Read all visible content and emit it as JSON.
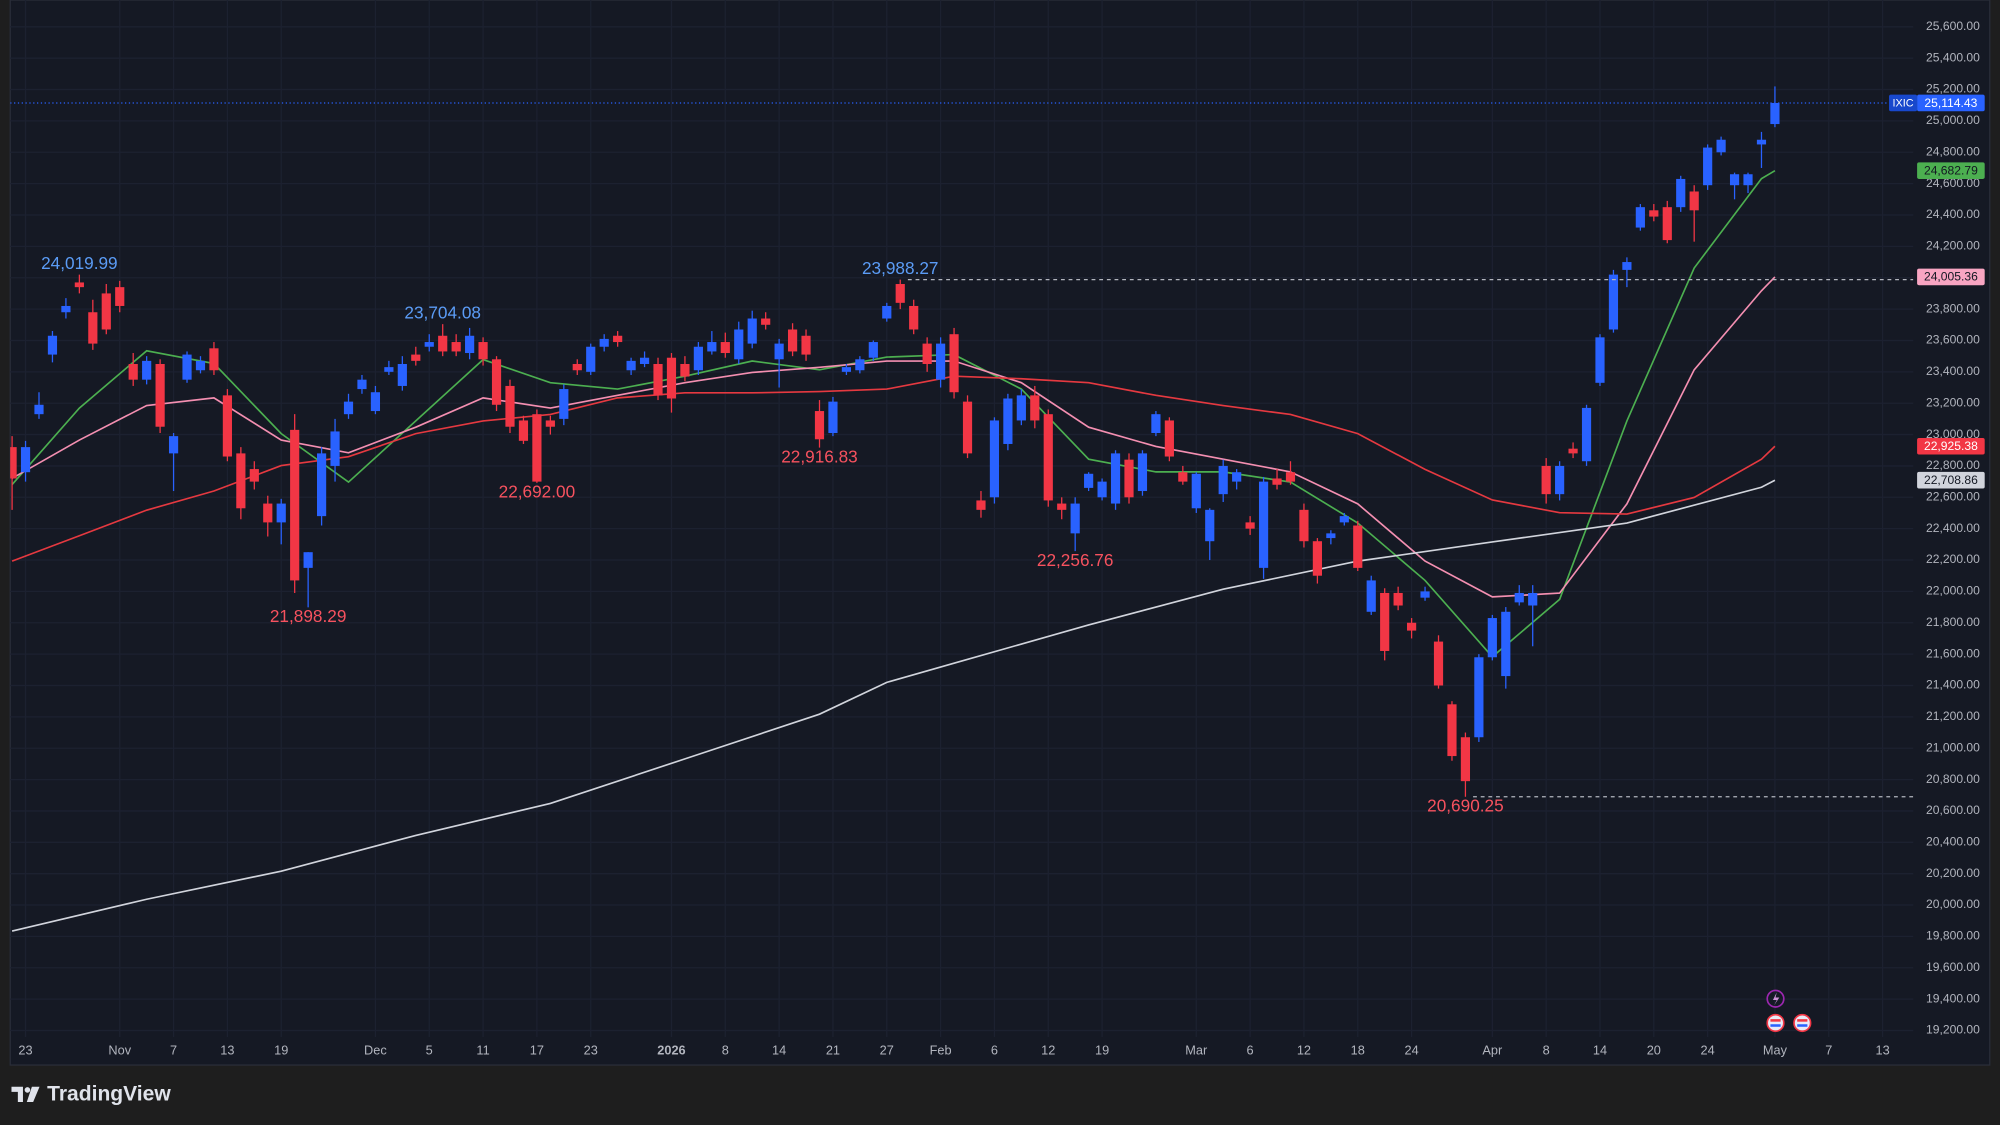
{
  "chart_data": {
    "type": "candlestick",
    "up_color": "#2962ff",
    "down_color": "#f23645",
    "grid": true,
    "xlim": [
      -0.14,
      141.28
    ],
    "ylim": [
      18996,
      25771
    ],
    "open": [
      22920,
      22760,
      23130,
      23510,
      23780,
      23970,
      23780,
      23900,
      23940,
      23450,
      23350,
      23450,
      22880,
      23350,
      23410,
      23550,
      23250,
      22880,
      22780,
      22560,
      22440,
      23030,
      22150,
      22480,
      22800,
      23130,
      23290,
      23150,
      23400,
      23310,
      23510,
      23560,
      23630,
      23590,
      23520,
      23590,
      23480,
      23310,
      23090,
      23130,
      23090,
      23100,
      23450,
      23400,
      23560,
      23630,
      23410,
      23450,
      23450,
      23490,
      23450,
      23410,
      23530,
      23590,
      23480,
      23580,
      23740,
      23480,
      23670,
      23630,
      23150,
      23010,
      23400,
      23410,
      23490,
      23740,
      23960,
      23820,
      23580,
      23350,
      23640,
      23210,
      22580,
      22600,
      22940,
      23090,
      23250,
      23130,
      22560,
      22370,
      22660,
      22600,
      22560,
      22840,
      22640,
      23010,
      23090,
      22760,
      22530,
      22320,
      22620,
      22700,
      22440,
      22150,
      22720,
      22760,
      22520,
      22320,
      22340,
      22440,
      22420,
      21870,
      21990,
      21990,
      21800,
      21960,
      21680,
      21280,
      21070,
      21070,
      21580,
      21460,
      21930,
      21910,
      22800,
      22620,
      22910,
      22830,
      23330,
      23670,
      24050,
      24320,
      24430,
      24450,
      24450,
      24550,
      24590,
      24800,
      24590,
      24590,
      24850,
      24980
    ],
    "high": [
      22990,
      22960,
      23270,
      23660,
      23870,
      24019.99,
      23860,
      23960,
      23980,
      23520,
      23500,
      23480,
      23010,
      23530,
      23500,
      23590,
      23290,
      22920,
      22830,
      22610,
      22590,
      23130,
      22250,
      22920,
      23100,
      23260,
      23380,
      23310,
      23470,
      23500,
      23560,
      23640,
      23704.08,
      23640,
      23680,
      23620,
      23500,
      23350,
      23120,
      23160,
      23120,
      23320,
      23480,
      23580,
      23640,
      23660,
      23490,
      23530,
      23490,
      23520,
      23500,
      23590,
      23660,
      23650,
      23720,
      23790,
      23780,
      23610,
      23710,
      23670,
      23220,
      23240,
      23450,
      23500,
      23600,
      23840,
      23988.27,
      23860,
      23620,
      23620,
      23680,
      23250,
      22640,
      23110,
      23260,
      23290,
      23310,
      23160,
      22600,
      22600,
      22760,
      22720,
      22900,
      22880,
      22900,
      23150,
      23110,
      22800,
      22760,
      22530,
      22840,
      22780,
      22480,
      22730,
      22780,
      22830,
      22560,
      22340,
      22390,
      22500,
      22450,
      22100,
      22020,
      22030,
      21830,
      22030,
      21720,
      21300,
      21100,
      21600,
      21850,
      21900,
      22040,
      22040,
      22850,
      22830,
      22950,
      23190,
      23640,
      24050,
      24130,
      24470,
      24470,
      24490,
      24650,
      24590,
      24850,
      24900,
      24670,
      24670,
      24930,
      25220
    ],
    "low": [
      22520,
      22700,
      23100,
      23460,
      23740,
      23900,
      23540,
      23640,
      23780,
      23310,
      23320,
      23010,
      22640,
      23330,
      23390,
      23380,
      22830,
      22460,
      22650,
      22350,
      22300,
      21990,
      21898.29,
      22420,
      22700,
      23100,
      23260,
      23130,
      23380,
      23280,
      23440,
      23530,
      23500,
      23500,
      23480,
      23440,
      23150,
      23010,
      22940,
      22692,
      23000,
      23060,
      23380,
      23380,
      23530,
      23560,
      23380,
      23430,
      23220,
      23140,
      23340,
      23380,
      23510,
      23490,
      23450,
      23550,
      23670,
      23300,
      23500,
      23470,
      22916.83,
      22990,
      23380,
      23390,
      23470,
      23720,
      23800,
      23640,
      23400,
      23300,
      23230,
      22850,
      22470,
      22560,
      22900,
      23060,
      23040,
      22540,
      22460,
      22256.76,
      22640,
      22580,
      22520,
      22560,
      22610,
      22990,
      22830,
      22680,
      22500,
      22200,
      22570,
      22650,
      22360,
      22080,
      22650,
      22680,
      22280,
      22050,
      22300,
      22420,
      22130,
      21850,
      21560,
      21880,
      21700,
      21940,
      21380,
      20920,
      20690.25,
      21040,
      21560,
      21380,
      21910,
      21650,
      22560,
      22580,
      22850,
      22800,
      23310,
      23650,
      23940,
      24300,
      24360,
      24220,
      24420,
      24230,
      24560,
      24780,
      24500,
      24540,
      24700,
      24960
    ],
    "close": [
      22720,
      22920,
      23190,
      23630,
      23820,
      23940,
      23580,
      23670,
      23820,
      23350,
      23470,
      23050,
      22990,
      23510,
      23470,
      23410,
      22860,
      22530,
      22700,
      22440,
      22560,
      22070,
      22250,
      22880,
      23020,
      23210,
      23350,
      23270,
      23430,
      23450,
      23470,
      23590,
      23530,
      23530,
      23630,
      23480,
      23190,
      23050,
      22960,
      22700,
      23050,
      23290,
      23410,
      23560,
      23610,
      23590,
      23470,
      23490,
      23250,
      23230,
      23370,
      23560,
      23590,
      23520,
      23670,
      23740,
      23700,
      23580,
      23530,
      23510,
      22970,
      23210,
      23430,
      23480,
      23590,
      23820,
      23840,
      23670,
      23450,
      23580,
      23270,
      22880,
      22520,
      23090,
      23230,
      23250,
      23090,
      22580,
      22520,
      22560,
      22750,
      22700,
      22880,
      22600,
      22880,
      23130,
      22860,
      22700,
      22750,
      22520,
      22800,
      22760,
      22400,
      22700,
      22680,
      22700,
      22320,
      22100,
      22370,
      22480,
      22150,
      22070,
      21620,
      21910,
      21750,
      22000,
      21400,
      20950,
      20790,
      21580,
      21830,
      21870,
      21990,
      21990,
      22620,
      22800,
      22880,
      23170,
      23620,
      24020,
      24100,
      24450,
      24390,
      24240,
      24630,
      24430,
      24830,
      24880,
      24660,
      24660,
      24880,
      25114.43
    ],
    "series": [
      {
        "color": "#4caf50",
        "x": [
          0,
          5,
          10,
          15,
          20,
          25,
          30,
          35,
          40,
          45,
          50,
          55,
          60,
          65,
          70,
          75,
          80,
          85,
          90,
          95,
          100,
          105,
          110,
          115,
          120,
          125,
          130,
          131
        ],
        "values": [
          22681,
          23169,
          23534,
          23453,
          23006,
          22697,
          23087,
          23478,
          23331,
          23290,
          23372,
          23469,
          23413,
          23494,
          23510,
          23290,
          22843,
          22762,
          22762,
          22697,
          22436,
          22070,
          21583,
          21949,
          23087,
          24062,
          24632,
          24682.79
        ]
      },
      {
        "color": "#f48fb1",
        "x": [
          0,
          5,
          10,
          15,
          20,
          25,
          30,
          35,
          40,
          45,
          50,
          55,
          60,
          65,
          70,
          75,
          80,
          85,
          90,
          95,
          100,
          105,
          110,
          115,
          120,
          125,
          130,
          131
        ],
        "values": [
          22721,
          22965,
          23185,
          23234,
          22965,
          22884,
          23047,
          23234,
          23169,
          23250,
          23331,
          23396,
          23429,
          23469,
          23469,
          23331,
          23047,
          22924,
          22843,
          22762,
          22558,
          22193,
          21965,
          21989,
          22558,
          23413,
          23917,
          24005.36
        ]
      },
      {
        "color": "#e53940",
        "x": [
          0,
          5,
          10,
          15,
          20,
          25,
          30,
          35,
          40,
          45,
          50,
          55,
          60,
          65,
          70,
          75,
          80,
          85,
          90,
          95,
          100,
          105,
          110,
          115,
          120,
          125,
          130,
          131
        ],
        "values": [
          22193,
          22355,
          22518,
          22640,
          22802,
          22859,
          23006,
          23087,
          23128,
          23234,
          23266,
          23266,
          23274,
          23290,
          23372,
          23356,
          23331,
          23250,
          23185,
          23128,
          23006,
          22778,
          22583,
          22502,
          22493,
          22599,
          22843,
          22925.38
        ]
      },
      {
        "color": "#d1d4dc",
        "x": [
          0,
          10,
          20,
          30,
          40,
          50,
          60,
          65,
          70,
          80,
          90,
          100,
          110,
          120,
          130,
          131
        ],
        "values": [
          19834,
          20037,
          20216,
          20444,
          20648,
          20932,
          21217,
          21420,
          21542,
          21786,
          22014,
          22193,
          22315,
          22436,
          22664,
          22708.86
        ]
      }
    ],
    "yticks": [
      {
        "value": 19200,
        "label": "19,200.00"
      },
      {
        "value": 19400,
        "label": "19,400.00"
      },
      {
        "value": 19600,
        "label": "19,600.00"
      },
      {
        "value": 19800,
        "label": "19,800.00"
      },
      {
        "value": 20000,
        "label": "20,000.00"
      },
      {
        "value": 20200,
        "label": "20,200.00"
      },
      {
        "value": 20400,
        "label": "20,400.00"
      },
      {
        "value": 20600,
        "label": "20,600.00"
      },
      {
        "value": 20800,
        "label": "20,800.00"
      },
      {
        "value": 21000,
        "label": "21,000.00"
      },
      {
        "value": 21200,
        "label": "21,200.00"
      },
      {
        "value": 21400,
        "label": "21,400.00"
      },
      {
        "value": 21600,
        "label": "21,600.00"
      },
      {
        "value": 21800,
        "label": "21,800.00"
      },
      {
        "value": 22000,
        "label": "22,000.00"
      },
      {
        "value": 22200,
        "label": "22,200.00"
      },
      {
        "value": 22400,
        "label": "22,400.00"
      },
      {
        "value": 22600,
        "label": "22,600.00"
      },
      {
        "value": 22800,
        "label": "22,800.00"
      },
      {
        "value": 23000,
        "label": "23,000.00"
      },
      {
        "value": 23200,
        "label": "23,200.00"
      },
      {
        "value": 23400,
        "label": "23,400.00"
      },
      {
        "value": 23600,
        "label": "23,600.00"
      },
      {
        "value": 23800,
        "label": "23,800.00"
      },
      {
        "value": 24000,
        "label": "24,000.00"
      },
      {
        "value": 24200,
        "label": "24,200.00"
      },
      {
        "value": 24400,
        "label": "24,400.00"
      },
      {
        "value": 24600,
        "label": "24,600.00"
      },
      {
        "value": 24800,
        "label": "24,800.00"
      },
      {
        "value": 25000,
        "label": "25,000.00"
      },
      {
        "value": 25200,
        "label": "25,200.00"
      },
      {
        "value": 25400,
        "label": "25,400.00"
      },
      {
        "value": 25600,
        "label": "25,600.00"
      }
    ],
    "xticks": [
      {
        "value": 1,
        "label": "23"
      },
      {
        "value": 8,
        "label": "Nov"
      },
      {
        "value": 12,
        "label": "7"
      },
      {
        "value": 16,
        "label": "13"
      },
      {
        "value": 20,
        "label": "19"
      },
      {
        "value": 27,
        "label": "Dec"
      },
      {
        "value": 31,
        "label": "5"
      },
      {
        "value": 35,
        "label": "11"
      },
      {
        "value": 39,
        "label": "17"
      },
      {
        "value": 43,
        "label": "23"
      },
      {
        "value": 49,
        "label": "2026",
        "bold": true
      },
      {
        "value": 53,
        "label": "8"
      },
      {
        "value": 57,
        "label": "14"
      },
      {
        "value": 61,
        "label": "21"
      },
      {
        "value": 65,
        "label": "27"
      },
      {
        "value": 69,
        "label": "Feb"
      },
      {
        "value": 73,
        "label": "6"
      },
      {
        "value": 77,
        "label": "12"
      },
      {
        "value": 81,
        "label": "19"
      },
      {
        "value": 88,
        "label": "Mar"
      },
      {
        "value": 92,
        "label": "6"
      },
      {
        "value": 96,
        "label": "12"
      },
      {
        "value": 100,
        "label": "18"
      },
      {
        "value": 104,
        "label": "24"
      },
      {
        "value": 110,
        "label": "Apr"
      },
      {
        "value": 114,
        "label": "8"
      },
      {
        "value": 118,
        "label": "14"
      },
      {
        "value": 122,
        "label": "20"
      },
      {
        "value": 126,
        "label": "24"
      },
      {
        "value": 131,
        "label": "May"
      },
      {
        "value": 135,
        "label": "7"
      },
      {
        "value": 139,
        "label": "13"
      }
    ],
    "annotations": [
      {
        "label": "24,019.99",
        "value": 24019.99,
        "position": "above",
        "color": "#5b9cf6"
      },
      {
        "label": "23,704.08",
        "value": 23704.08,
        "position": "above",
        "color": "#5b9cf6"
      },
      {
        "label": "23,988.27",
        "value": 23988.27,
        "position": "above",
        "color": "#5b9cf6",
        "line": true
      },
      {
        "label": "21,898.29",
        "value": 21898.29,
        "position": "below",
        "color": "#f7525f"
      },
      {
        "label": "22,692.00",
        "value": 22692,
        "position": "below",
        "color": "#f7525f"
      },
      {
        "label": "22,916.83",
        "value": 22916.83,
        "position": "below",
        "color": "#f7525f"
      },
      {
        "label": "22,256.76",
        "value": 22256.76,
        "position": "below",
        "color": "#f7525f"
      },
      {
        "label": "20,690.25",
        "value": 20690.25,
        "position": "below",
        "color": "#f7525f",
        "line": true
      }
    ],
    "price_tags": [
      {
        "symbol": "IXIC",
        "value": 25114.43,
        "label": "25,114.43",
        "color": "#2962ff",
        "text_color": "#ffffff",
        "line": "dotted"
      },
      {
        "value": 24682.79,
        "label": "24,682.79",
        "color": "#4caf50",
        "text_color": "#131722"
      },
      {
        "value": 24005.36,
        "label": "24,005.36",
        "color": "#f8a5c2",
        "text_color": "#131722"
      },
      {
        "value": 22925.38,
        "label": "22,925.38",
        "color": "#f23645",
        "text_color": "#ffffff"
      },
      {
        "value": 22708.86,
        "label": "22,708.86",
        "color": "#d1d4dc",
        "text_color": "#131722"
      }
    ]
  },
  "footer": {
    "brand": "TradingView"
  }
}
